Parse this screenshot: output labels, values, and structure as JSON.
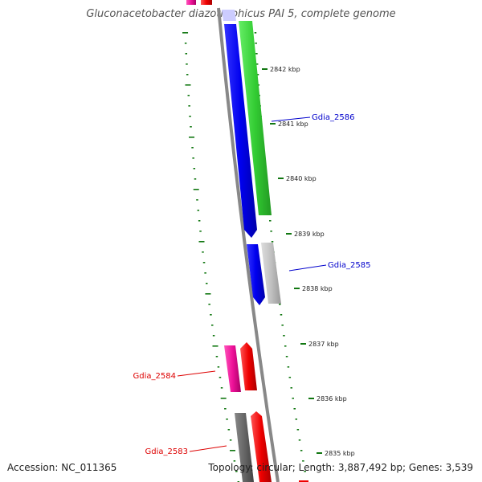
{
  "title": "Gluconacetobacter diazotrophicus PAI 5, complete genome",
  "accession": "Accession: NC_011365",
  "summary": "Topology: circular; Length: 3,887,492 bp; Genes: 3,539",
  "kbp_labels": [
    "2842 kbp",
    "2841 kbp",
    "2840 kbp",
    "2839 kbp",
    "2838 kbp",
    "2837 kbp",
    "2836 kbp",
    "2835 kbp"
  ],
  "genes": [
    {
      "name": "Gdia_2586",
      "color": "#0000cc"
    },
    {
      "name": "Gdia_2585",
      "color": "#0000cc"
    },
    {
      "name": "Gdia_2584",
      "color": "#dd0000"
    },
    {
      "name": "Gdia_2583",
      "color": "#dd0000"
    }
  ],
  "colors": {
    "blue_gene": "#0000ee",
    "green_gene": "#33cc33",
    "grey_gene": "#bbbbbb",
    "dark_grey_gene": "#666666",
    "pink_gene": "#ee1199",
    "red_gene": "#ee0000",
    "backbone": "#888888",
    "gc_dots": "#117711"
  }
}
